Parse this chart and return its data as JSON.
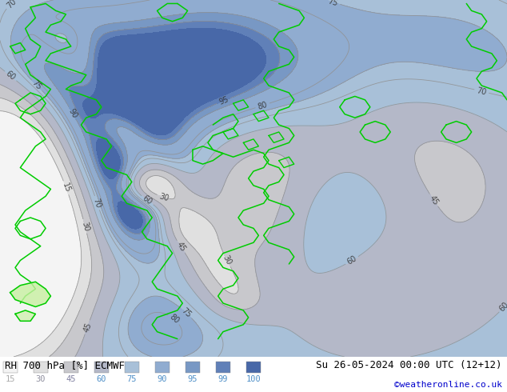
{
  "title_left": "RH 700 hPa [%] ECMWF",
  "title_right": "Su 26-05-2024 00:00 UTC (12+12)",
  "credit": "©weatheronline.co.uk",
  "legend_values": [
    15,
    30,
    45,
    60,
    75,
    90,
    95,
    99,
    100
  ],
  "fill_colors": [
    "#f8f8f8",
    "#e4e4e4",
    "#d0d0d0",
    "#bcbccc",
    "#a8c0dc",
    "#90acd0",
    "#7898c8",
    "#6484c0",
    "#5070b8"
  ],
  "contour_color": "#909090",
  "border_color": "#00cc00",
  "fig_bg": "#ffffff",
  "bottom_bg": "#ffffff",
  "label_color": "#000000",
  "credit_color": "#0000cc",
  "figsize": [
    6.34,
    4.9
  ],
  "dpi": 100
}
